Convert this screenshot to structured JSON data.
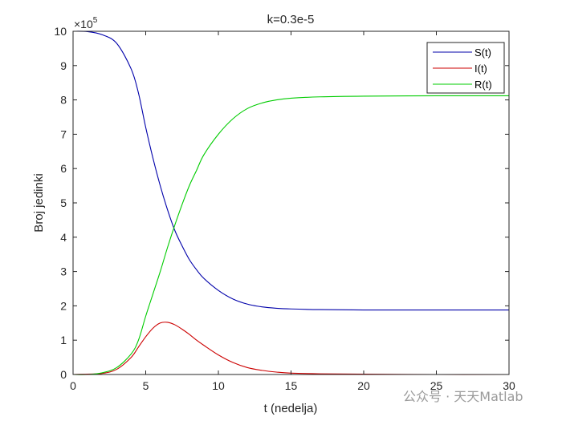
{
  "chart_data": {
    "type": "line",
    "title": "k=0.3e-5",
    "xlabel": "t (nedelja)",
    "ylabel": "Broj jedinki",
    "y_exponent_base": "×10",
    "y_exponent": "5",
    "xlim": [
      0,
      30
    ],
    "ylim": [
      0,
      10
    ],
    "xticks": [
      "0",
      "5",
      "10",
      "15",
      "20",
      "25",
      "30"
    ],
    "yticks": [
      "0",
      "1",
      "2",
      "3",
      "4",
      "5",
      "6",
      "7",
      "8",
      "9",
      "10"
    ],
    "grid": false,
    "legend_position": "top-right",
    "x": [
      0,
      1,
      2,
      3,
      4,
      4.5,
      5,
      5.5,
      6,
      6.5,
      7,
      7.5,
      8,
      8.5,
      9,
      10,
      11,
      12,
      13,
      14,
      15,
      17,
      20,
      25,
      30
    ],
    "series": [
      {
        "name": "S(t)",
        "color": "#0000aa",
        "values": [
          10,
          9.99,
          9.9,
          9.65,
          8.9,
          8.2,
          7.2,
          6.3,
          5.5,
          4.8,
          4.2,
          3.75,
          3.35,
          3.05,
          2.8,
          2.45,
          2.2,
          2.05,
          1.97,
          1.93,
          1.91,
          1.89,
          1.88,
          1.88,
          1.88
        ]
      },
      {
        "name": "I(t)",
        "color": "#cc0000",
        "values": [
          0,
          0.01,
          0.03,
          0.15,
          0.5,
          0.8,
          1.1,
          1.35,
          1.5,
          1.52,
          1.45,
          1.32,
          1.17,
          1.0,
          0.85,
          0.57,
          0.35,
          0.2,
          0.12,
          0.07,
          0.04,
          0.02,
          0.01,
          0.0,
          0.0
        ]
      },
      {
        "name": "R(t)",
        "color": "#00cc00",
        "values": [
          0,
          0.0,
          0.05,
          0.2,
          0.6,
          1.0,
          1.7,
          2.35,
          3.0,
          3.7,
          4.35,
          4.95,
          5.5,
          5.95,
          6.4,
          7.0,
          7.45,
          7.75,
          7.91,
          8.0,
          8.05,
          8.09,
          8.11,
          8.12,
          8.12
        ]
      }
    ]
  },
  "watermark": {
    "text": "公众号 · 天天Matlab"
  }
}
